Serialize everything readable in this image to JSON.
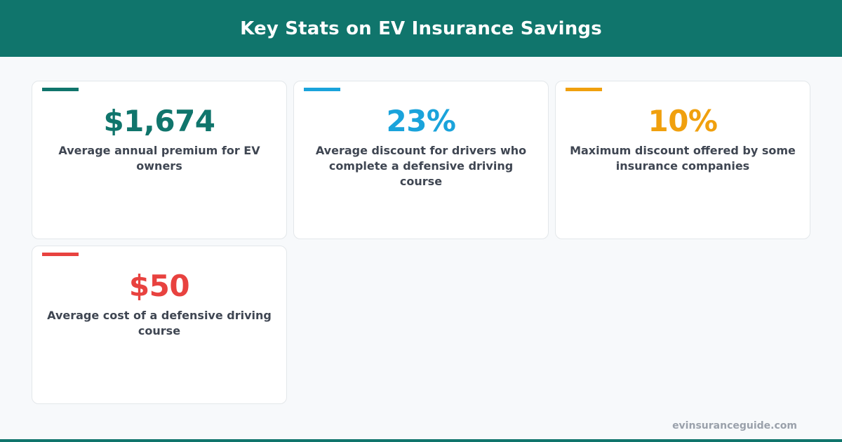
{
  "header": {
    "title": "Key Stats on EV Insurance Savings"
  },
  "stats": [
    {
      "value": "$1,674",
      "description": "Average annual premium for EV owners",
      "color": "#10756c"
    },
    {
      "value": "23%",
      "description": "Average discount for drivers who complete a defensive driving course",
      "color": "#1aa3db"
    },
    {
      "value": "10%",
      "description": "Maximum discount offered by some insurance companies",
      "color": "#f0a00e"
    },
    {
      "value": "$50",
      "description": "Average cost of a defensive driving course",
      "color": "#e8423f"
    }
  ],
  "footer": {
    "site": "evinsuranceguide.com"
  },
  "colors": {
    "brand": "#10756c",
    "background": "#f7f9fb",
    "text": "#3f4652"
  }
}
